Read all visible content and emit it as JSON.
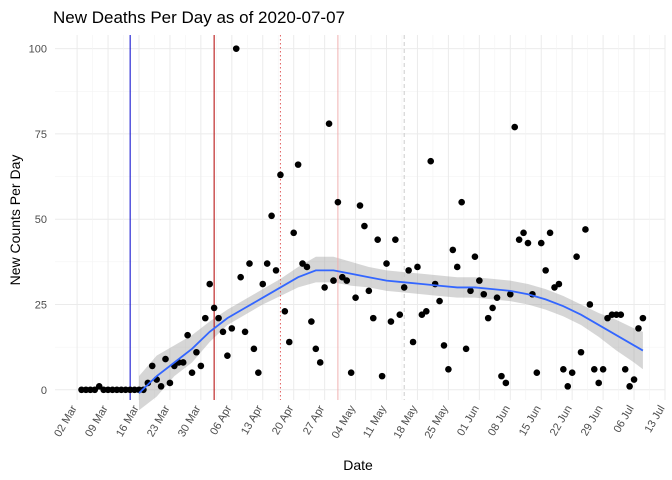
{
  "chart_data": {
    "type": "scatter",
    "title": "New Deaths Per Day as of 2020-07-07",
    "xlabel": "Date",
    "ylabel": "New Counts Per Day",
    "xlim": [
      "2020-02-26",
      "2020-07-13"
    ],
    "ylim": [
      -3,
      104
    ],
    "y_ticks": [
      0,
      25,
      50,
      75,
      100
    ],
    "x_ticks": [
      {
        "date": "2020-03-02",
        "label": "02 Mar"
      },
      {
        "date": "2020-03-09",
        "label": "09 Mar"
      },
      {
        "date": "2020-03-16",
        "label": "16 Mar"
      },
      {
        "date": "2020-03-23",
        "label": "23 Mar"
      },
      {
        "date": "2020-03-30",
        "label": "30 Mar"
      },
      {
        "date": "2020-04-06",
        "label": "06 Apr"
      },
      {
        "date": "2020-04-13",
        "label": "13 Apr"
      },
      {
        "date": "2020-04-20",
        "label": "20 Apr"
      },
      {
        "date": "2020-04-27",
        "label": "27 Apr"
      },
      {
        "date": "2020-05-04",
        "label": "04 May"
      },
      {
        "date": "2020-05-11",
        "label": "11 May"
      },
      {
        "date": "2020-05-18",
        "label": "18 May"
      },
      {
        "date": "2020-05-25",
        "label": "25 May"
      },
      {
        "date": "2020-06-01",
        "label": "01 Jun"
      },
      {
        "date": "2020-06-08",
        "label": "08 Jun"
      },
      {
        "date": "2020-06-15",
        "label": "15 Jun"
      },
      {
        "date": "2020-06-22",
        "label": "22 Jun"
      },
      {
        "date": "2020-06-29",
        "label": "29 Jun"
      },
      {
        "date": "2020-07-06",
        "label": "06 Jul"
      },
      {
        "date": "2020-07-13",
        "label": "13 Jul"
      }
    ],
    "grid": true,
    "series": [
      {
        "points": [
          [
            "2020-03-03",
            0
          ],
          [
            "2020-03-04",
            0
          ],
          [
            "2020-03-05",
            0
          ],
          [
            "2020-03-06",
            0
          ],
          [
            "2020-03-07",
            1
          ],
          [
            "2020-03-08",
            0
          ],
          [
            "2020-03-09",
            0
          ],
          [
            "2020-03-10",
            0
          ],
          [
            "2020-03-11",
            0
          ],
          [
            "2020-03-12",
            0
          ],
          [
            "2020-03-13",
            0
          ],
          [
            "2020-03-14",
            0
          ],
          [
            "2020-03-15",
            0
          ],
          [
            "2020-03-16",
            0
          ],
          [
            "2020-03-17",
            0
          ],
          [
            "2020-03-18",
            2
          ],
          [
            "2020-03-19",
            7
          ],
          [
            "2020-03-20",
            3
          ],
          [
            "2020-03-21",
            1
          ],
          [
            "2020-03-22",
            9
          ],
          [
            "2020-03-23",
            2
          ],
          [
            "2020-03-24",
            7
          ],
          [
            "2020-03-25",
            8
          ],
          [
            "2020-03-26",
            8
          ],
          [
            "2020-03-27",
            16
          ],
          [
            "2020-03-28",
            5
          ],
          [
            "2020-03-29",
            11
          ],
          [
            "2020-03-30",
            7
          ],
          [
            "2020-03-31",
            21
          ],
          [
            "2020-04-01",
            31
          ],
          [
            "2020-04-02",
            24
          ],
          [
            "2020-04-03",
            21
          ],
          [
            "2020-04-04",
            17
          ],
          [
            "2020-04-05",
            10
          ],
          [
            "2020-04-06",
            18
          ],
          [
            "2020-04-07",
            100
          ],
          [
            "2020-04-08",
            33
          ],
          [
            "2020-04-09",
            17
          ],
          [
            "2020-04-10",
            37
          ],
          [
            "2020-04-11",
            12
          ],
          [
            "2020-04-12",
            5
          ],
          [
            "2020-04-13",
            31
          ],
          [
            "2020-04-14",
            37
          ],
          [
            "2020-04-15",
            51
          ],
          [
            "2020-04-16",
            35
          ],
          [
            "2020-04-17",
            63
          ],
          [
            "2020-04-18",
            23
          ],
          [
            "2020-04-19",
            14
          ],
          [
            "2020-04-20",
            46
          ],
          [
            "2020-04-21",
            66
          ],
          [
            "2020-04-22",
            37
          ],
          [
            "2020-04-23",
            36
          ],
          [
            "2020-04-24",
            20
          ],
          [
            "2020-04-25",
            12
          ],
          [
            "2020-04-26",
            8
          ],
          [
            "2020-04-27",
            30
          ],
          [
            "2020-04-28",
            78
          ],
          [
            "2020-04-29",
            32
          ],
          [
            "2020-04-30",
            55
          ],
          [
            "2020-05-01",
            33
          ],
          [
            "2020-05-02",
            32
          ],
          [
            "2020-05-03",
            5
          ],
          [
            "2020-05-04",
            27
          ],
          [
            "2020-05-05",
            54
          ],
          [
            "2020-05-06",
            48
          ],
          [
            "2020-05-07",
            29
          ],
          [
            "2020-05-08",
            21
          ],
          [
            "2020-05-09",
            44
          ],
          [
            "2020-05-10",
            4
          ],
          [
            "2020-05-11",
            37
          ],
          [
            "2020-05-12",
            20
          ],
          [
            "2020-05-13",
            44
          ],
          [
            "2020-05-14",
            22
          ],
          [
            "2020-05-15",
            30
          ],
          [
            "2020-05-16",
            35
          ],
          [
            "2020-05-17",
            14
          ],
          [
            "2020-05-18",
            36
          ],
          [
            "2020-05-19",
            22
          ],
          [
            "2020-05-20",
            23
          ],
          [
            "2020-05-21",
            67
          ],
          [
            "2020-05-22",
            31
          ],
          [
            "2020-05-23",
            26
          ],
          [
            "2020-05-24",
            13
          ],
          [
            "2020-05-25",
            6
          ],
          [
            "2020-05-26",
            41
          ],
          [
            "2020-05-27",
            36
          ],
          [
            "2020-05-28",
            55
          ],
          [
            "2020-05-29",
            12
          ],
          [
            "2020-05-30",
            29
          ],
          [
            "2020-05-31",
            39
          ],
          [
            "2020-06-01",
            32
          ],
          [
            "2020-06-02",
            28
          ],
          [
            "2020-06-03",
            21
          ],
          [
            "2020-06-04",
            24
          ],
          [
            "2020-06-05",
            27
          ],
          [
            "2020-06-06",
            4
          ],
          [
            "2020-06-07",
            2
          ],
          [
            "2020-06-08",
            28
          ],
          [
            "2020-06-09",
            77
          ],
          [
            "2020-06-10",
            44
          ],
          [
            "2020-06-11",
            46
          ],
          [
            "2020-06-12",
            43
          ],
          [
            "2020-06-13",
            28
          ],
          [
            "2020-06-14",
            5
          ],
          [
            "2020-06-15",
            43
          ],
          [
            "2020-06-16",
            35
          ],
          [
            "2020-06-17",
            46
          ],
          [
            "2020-06-18",
            30
          ],
          [
            "2020-06-19",
            31
          ],
          [
            "2020-06-20",
            6
          ],
          [
            "2020-06-21",
            1
          ],
          [
            "2020-06-22",
            5
          ],
          [
            "2020-06-23",
            39
          ],
          [
            "2020-06-24",
            11
          ],
          [
            "2020-06-25",
            47
          ],
          [
            "2020-06-26",
            25
          ],
          [
            "2020-06-27",
            6
          ],
          [
            "2020-06-28",
            2
          ],
          [
            "2020-06-29",
            6
          ],
          [
            "2020-06-30",
            21
          ],
          [
            "2020-07-01",
            22
          ],
          [
            "2020-07-02",
            22
          ],
          [
            "2020-07-03",
            22
          ],
          [
            "2020-07-04",
            6
          ],
          [
            "2020-07-05",
            1
          ],
          [
            "2020-07-06",
            3
          ],
          [
            "2020-07-07",
            18
          ],
          [
            "2020-07-08",
            21
          ]
        ],
        "color": "#000000"
      }
    ],
    "smooth": {
      "color": "#3366ff",
      "band_color": "#999999",
      "points": [
        [
          "2020-03-16",
          -1,
          -6,
          4
        ],
        [
          "2020-03-20",
          4,
          -2,
          10
        ],
        [
          "2020-03-24",
          8,
          4,
          13
        ],
        [
          "2020-03-28",
          12,
          8,
          16
        ],
        [
          "2020-04-01",
          17,
          14,
          20
        ],
        [
          "2020-04-05",
          21,
          19,
          23.5
        ],
        [
          "2020-04-09",
          24,
          22,
          26.5
        ],
        [
          "2020-04-13",
          27,
          25,
          29.5
        ],
        [
          "2020-04-17",
          30,
          27.5,
          32.5
        ],
        [
          "2020-04-21",
          33,
          30,
          36
        ],
        [
          "2020-04-25",
          35,
          31.5,
          39
        ],
        [
          "2020-04-29",
          35,
          31.5,
          39
        ],
        [
          "2020-05-03",
          34,
          30.5,
          37.5
        ],
        [
          "2020-05-07",
          33,
          30,
          36
        ],
        [
          "2020-05-11",
          32,
          29,
          35
        ],
        [
          "2020-05-15",
          31.5,
          28.5,
          34.5
        ],
        [
          "2020-05-19",
          31,
          28,
          34
        ],
        [
          "2020-05-23",
          30.5,
          27.5,
          33.5
        ],
        [
          "2020-05-27",
          30,
          27,
          33
        ],
        [
          "2020-05-31",
          30,
          27,
          33
        ],
        [
          "2020-06-04",
          29.5,
          26.5,
          32.5
        ],
        [
          "2020-06-08",
          29,
          26,
          32
        ],
        [
          "2020-06-12",
          28,
          25,
          31
        ],
        [
          "2020-06-16",
          26.5,
          23.5,
          29.5
        ],
        [
          "2020-06-20",
          24.5,
          21.5,
          27.5
        ],
        [
          "2020-06-24",
          22,
          19,
          25
        ],
        [
          "2020-06-28",
          19,
          15.5,
          22.5
        ],
        [
          "2020-07-02",
          16,
          11.5,
          20.5
        ],
        [
          "2020-07-06",
          13,
          8,
          18
        ],
        [
          "2020-07-08",
          11.5,
          6,
          17
        ]
      ]
    },
    "reference_lines": [
      {
        "date": "2020-03-14",
        "color": "#0000cc",
        "style": "solid"
      },
      {
        "date": "2020-04-02",
        "color": "#b30000",
        "style": "solid"
      },
      {
        "date": "2020-04-17",
        "color": "#e06060",
        "style": "dotted"
      },
      {
        "date": "2020-04-30",
        "color": "#f0b0b0",
        "style": "solid"
      },
      {
        "date": "2020-05-15",
        "color": "#cccccc",
        "style": "dashed"
      }
    ]
  }
}
